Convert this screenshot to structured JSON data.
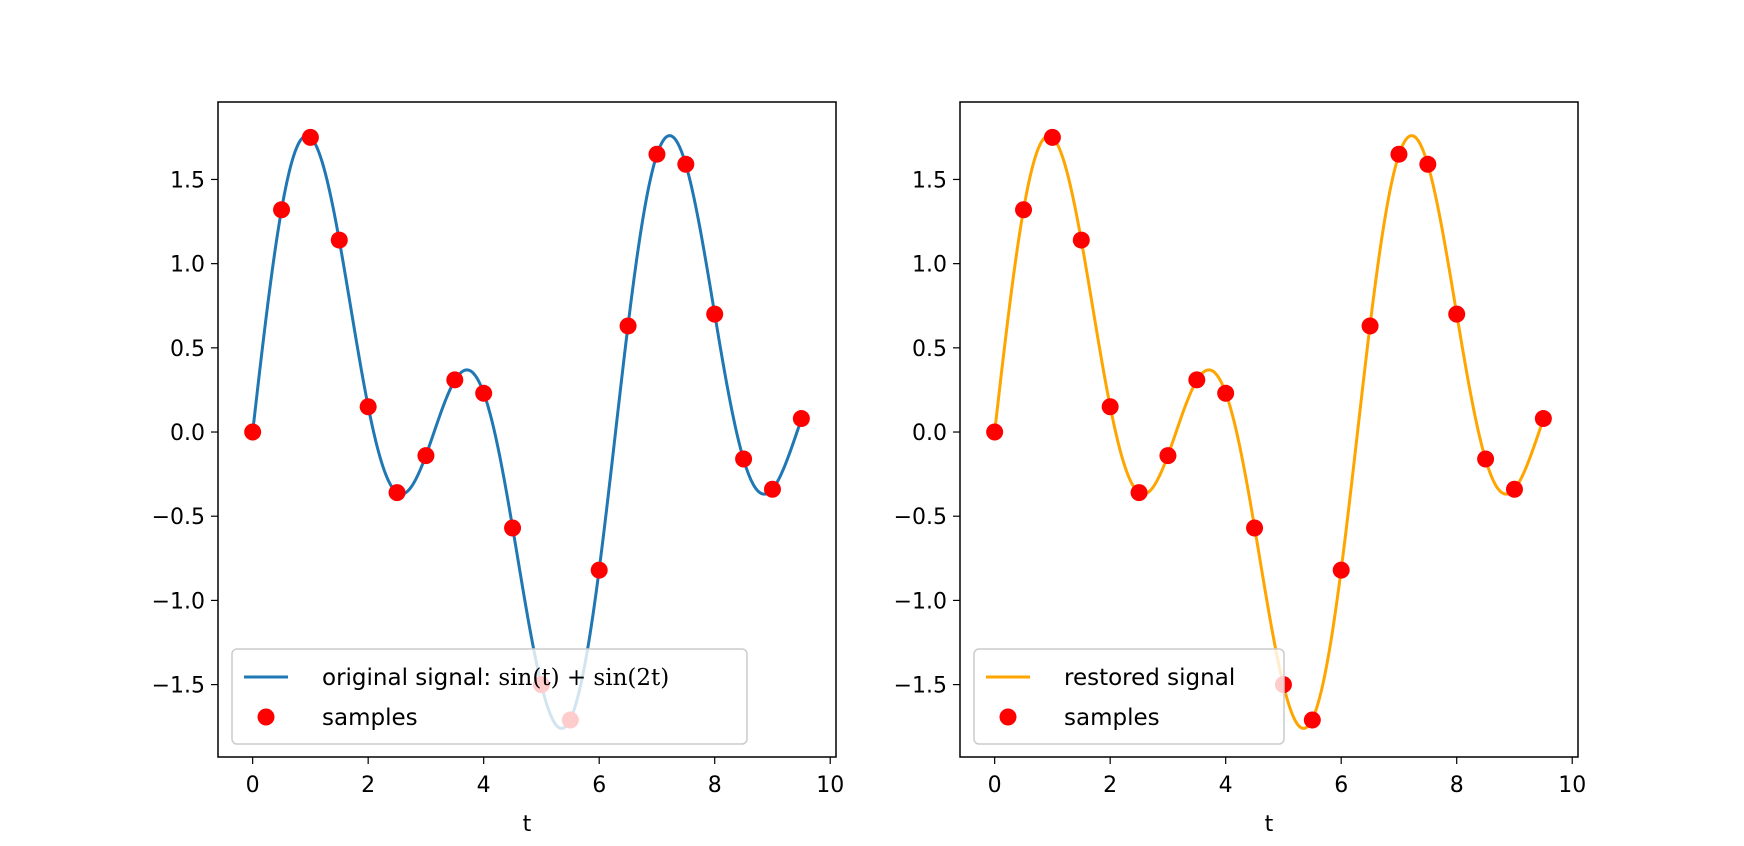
{
  "chart_data": [
    {
      "type": "line",
      "panel": "left",
      "xlabel": "t",
      "xlim": [
        -0.6,
        10.1
      ],
      "ylim": [
        -1.93,
        1.96
      ],
      "xticks": [
        0,
        2,
        4,
        6,
        8,
        10
      ],
      "xtick_labels": [
        "0",
        "2",
        "4",
        "6",
        "8",
        "10"
      ],
      "yticks": [
        -1.5,
        -1.0,
        -0.5,
        0.0,
        0.5,
        1.0,
        1.5
      ],
      "ytick_labels": [
        "−1.5",
        "−1.0",
        "−0.5",
        "0.0",
        "0.5",
        "1.0",
        "1.5"
      ],
      "grid": false,
      "legend_position": "lower-left",
      "series": [
        {
          "name": "original signal: sin(t) + sin(2t)",
          "kind": "line",
          "color": "#1f77b4",
          "function": "sin(t) + sin(2t)",
          "x_range": [
            0,
            9.5
          ]
        },
        {
          "name": "samples",
          "kind": "scatter",
          "color": "#ff0000",
          "x": [
            0,
            0.5,
            1,
            1.5,
            2,
            2.5,
            3,
            3.5,
            4,
            4.5,
            5,
            5.5,
            6,
            6.5,
            7,
            7.5,
            8,
            8.5,
            9,
            9.5
          ],
          "y": [
            0.0,
            1.32,
            1.75,
            1.14,
            0.15,
            -0.36,
            -0.14,
            0.31,
            0.23,
            -0.57,
            -1.5,
            -1.71,
            -0.82,
            0.63,
            1.65,
            1.59,
            0.7,
            -0.16,
            -0.34,
            0.08
          ]
        }
      ],
      "legend_labels": {
        "line_prefix": "original signal: ",
        "line_formula": "sin(t) + sin(2t)",
        "samples": "samples"
      }
    },
    {
      "type": "line",
      "panel": "right",
      "xlabel": "t",
      "xlim": [
        -0.6,
        10.1
      ],
      "ylim": [
        -1.93,
        1.96
      ],
      "xticks": [
        0,
        2,
        4,
        6,
        8,
        10
      ],
      "xtick_labels": [
        "0",
        "2",
        "4",
        "6",
        "8",
        "10"
      ],
      "yticks": [
        -1.5,
        -1.0,
        -0.5,
        0.0,
        0.5,
        1.0,
        1.5
      ],
      "ytick_labels": [
        "−1.5",
        "−1.0",
        "−0.5",
        "0.0",
        "0.5",
        "1.0",
        "1.5"
      ],
      "grid": false,
      "legend_position": "lower-left",
      "series": [
        {
          "name": "restored signal",
          "kind": "line",
          "color": "#ffa500",
          "function": "sin(t) + sin(2t)",
          "x_range": [
            0,
            9.5
          ]
        },
        {
          "name": "samples",
          "kind": "scatter",
          "color": "#ff0000",
          "x": [
            0,
            0.5,
            1,
            1.5,
            2,
            2.5,
            3,
            3.5,
            4,
            4.5,
            5,
            5.5,
            6,
            6.5,
            7,
            7.5,
            8,
            8.5,
            9,
            9.5
          ],
          "y": [
            0.0,
            1.32,
            1.75,
            1.14,
            0.15,
            -0.36,
            -0.14,
            0.31,
            0.23,
            -0.57,
            -1.5,
            -1.71,
            -0.82,
            0.63,
            1.65,
            1.59,
            0.7,
            -0.16,
            -0.34,
            0.08
          ]
        }
      ],
      "legend_labels": {
        "line": "restored signal",
        "samples": "samples"
      }
    }
  ]
}
